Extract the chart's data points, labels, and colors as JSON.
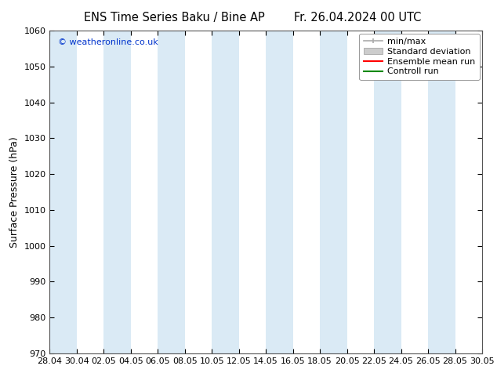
{
  "title_left": "ENS Time Series Baku / Bine AP",
  "title_right": "Fr. 26.04.2024 00 UTC",
  "ylabel": "Surface Pressure (hPa)",
  "ylim": [
    970,
    1060
  ],
  "yticks": [
    970,
    980,
    990,
    1000,
    1010,
    1020,
    1030,
    1040,
    1050,
    1060
  ],
  "xlabel_dates": [
    "28.04",
    "30.04",
    "02.05",
    "04.05",
    "06.05",
    "08.05",
    "10.05",
    "12.05",
    "14.05",
    "16.05",
    "18.05",
    "20.05",
    "22.05",
    "24.05",
    "26.05",
    "28.05",
    "30.05"
  ],
  "watermark": "© weatheronline.co.uk",
  "bg_color": "#ffffff",
  "plot_bg_color": "#ffffff",
  "band_color": "#daeaf5",
  "legend_minmax_color": "#aaaaaa",
  "legend_std_color": "#cccccc",
  "legend_ens_color": "#ff0000",
  "legend_ctrl_color": "#008800",
  "figsize": [
    6.34,
    4.9
  ],
  "dpi": 100,
  "title_fontsize": 10.5,
  "ylabel_fontsize": 9,
  "tick_fontsize": 8,
  "watermark_fontsize": 8,
  "legend_fontsize": 8
}
